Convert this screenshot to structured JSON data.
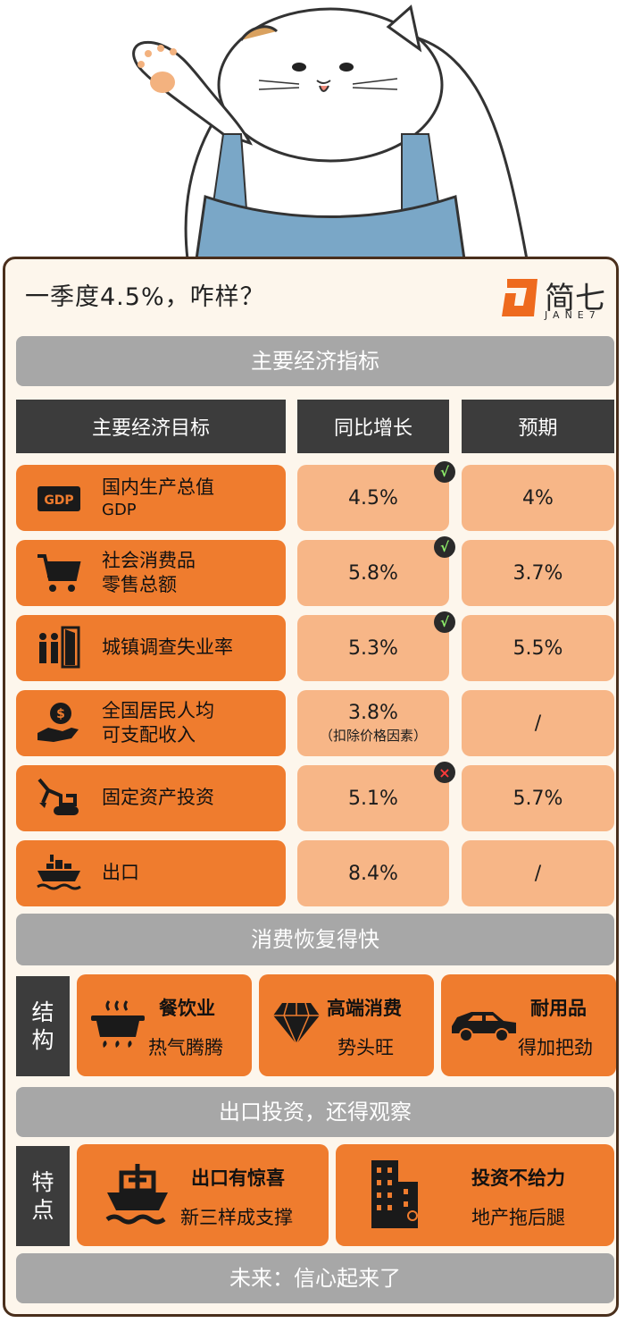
{
  "header": {
    "title": "一季度4.5%，咋样？",
    "brand_name": "简七",
    "brand_sub": "JANE7"
  },
  "section1": {
    "title": "主要经济指标",
    "columns": [
      "主要经济目标",
      "同比增长",
      "预期"
    ],
    "rows": [
      {
        "icon": "gdp-icon",
        "label": "国内生产总值",
        "sublabel": "GDP",
        "growth": "4.5%",
        "note": "",
        "expected": "4%",
        "mark": "check"
      },
      {
        "icon": "shopping-cart-icon",
        "label": "社会消费品",
        "sublabel": "零售总额",
        "growth": "5.8%",
        "note": "",
        "expected": "3.7%",
        "mark": "check"
      },
      {
        "icon": "unemployment-icon",
        "label": "城镇调查失业率",
        "sublabel": "",
        "growth": "5.3%",
        "note": "",
        "expected": "5.5%",
        "mark": "check"
      },
      {
        "icon": "income-hand-coin-icon",
        "label": "全国居民人均",
        "sublabel": "可支配收入",
        "growth": "3.8%",
        "note": "（扣除价格因素）",
        "expected": "/",
        "mark": ""
      },
      {
        "icon": "excavator-icon",
        "label": "固定资产投资",
        "sublabel": "",
        "growth": "5.1%",
        "note": "",
        "expected": "5.7%",
        "mark": "cross"
      },
      {
        "icon": "cargo-ship-icon",
        "label": "出口",
        "sublabel": "",
        "growth": "8.4%",
        "note": "",
        "expected": "/",
        "mark": ""
      }
    ],
    "check_symbol": "√",
    "cross_symbol": "×"
  },
  "section2": {
    "title": "消费恢复得快",
    "side_label": [
      "结",
      "构"
    ],
    "tiles": [
      {
        "icon": "steaming-pot-icon",
        "title": "餐饮业",
        "subtitle": "热气腾腾"
      },
      {
        "icon": "diamond-icon",
        "title": "高端消费",
        "subtitle": "势头旺"
      },
      {
        "icon": "car-icon",
        "title": "耐用品",
        "subtitle": "得加把劲"
      }
    ]
  },
  "section3": {
    "title": "出口投资，还得观察",
    "side_label": [
      "特",
      "点"
    ],
    "tiles": [
      {
        "icon": "ship-icon",
        "title": "出口有惊喜",
        "subtitle": "新三样成支撑"
      },
      {
        "icon": "buildings-icon",
        "title": "投资不给力",
        "subtitle": "地产拖后腿"
      }
    ]
  },
  "footer": {
    "text": "未来：信心起来了"
  },
  "colors": {
    "orange": "#ef7c2e",
    "light_orange": "#f7b687",
    "dark": "#3c3c3c",
    "gray_bar": "#a7a7a7",
    "card_bg": "#fdf6ec"
  }
}
